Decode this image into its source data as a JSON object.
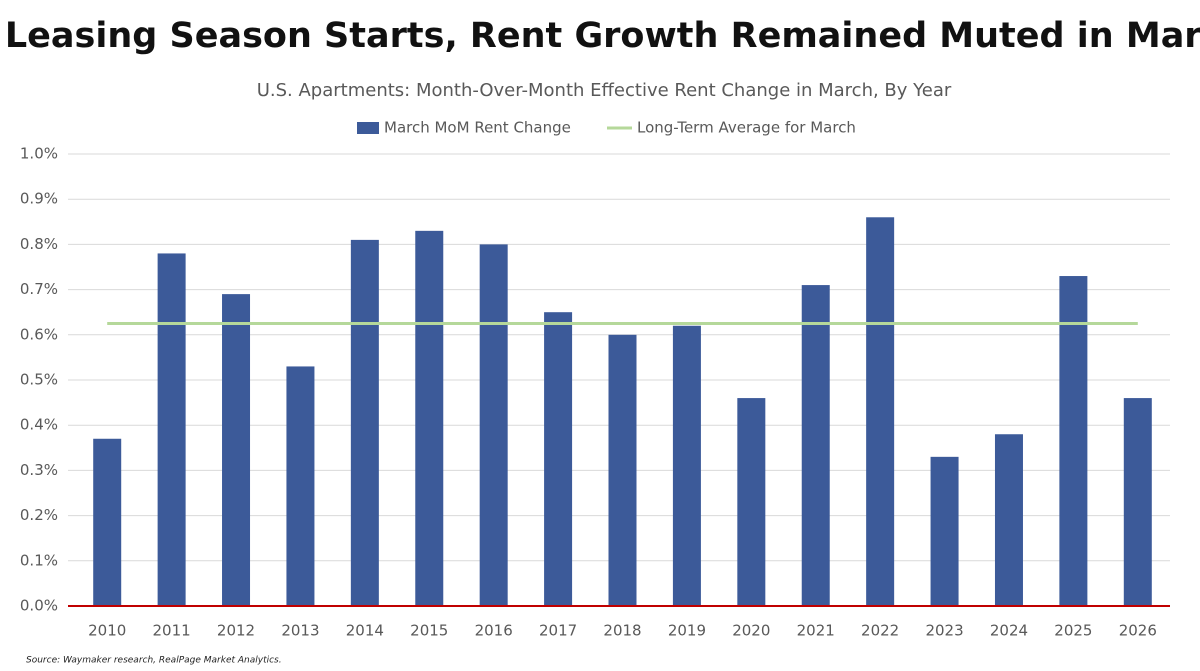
{
  "chart_data": {
    "type": "bar",
    "title": "As Leasing Season Starts, Rent Growth Remained Muted in March",
    "subtitle": "U.S. Apartments: Month-Over-Month Effective Rent Change in March, By Year",
    "source": "Source: Waymaker research, RealPage Market Analytics.",
    "categories": [
      "2010",
      "2011",
      "2012",
      "2013",
      "2014",
      "2015",
      "2016",
      "2017",
      "2018",
      "2019",
      "2020",
      "2021",
      "2022",
      "2023",
      "2024",
      "2025",
      "2026"
    ],
    "series": [
      {
        "name": "March MoM Rent Change",
        "type": "bar",
        "color": "#3c5a99",
        "values": [
          0.37,
          0.78,
          0.69,
          0.53,
          0.81,
          0.83,
          0.8,
          0.65,
          0.6,
          0.62,
          0.46,
          0.71,
          0.86,
          0.33,
          0.38,
          0.73,
          0.46
        ]
      },
      {
        "name": "Long-Term Average for March",
        "type": "line",
        "color": "#b5d89a",
        "values": [
          0.625,
          0.625,
          0.625,
          0.625,
          0.625,
          0.625,
          0.625,
          0.625,
          0.625,
          0.625,
          0.625,
          0.625,
          0.625,
          0.625,
          0.625,
          0.625,
          0.625
        ]
      }
    ],
    "ylim": [
      0,
      1.0
    ],
    "yticks": [
      {
        "value": 0,
        "label": "0.0%"
      },
      {
        "value": 0.1,
        "label": "0.1%"
      },
      {
        "value": 0.2,
        "label": "0.2%"
      },
      {
        "value": 0.3,
        "label": "0.3%"
      },
      {
        "value": 0.4,
        "label": "0.4%"
      },
      {
        "value": 0.5,
        "label": "0.5%"
      },
      {
        "value": 0.6,
        "label": "0.6%"
      },
      {
        "value": 0.7,
        "label": "0.7%"
      },
      {
        "value": 0.8,
        "label": "0.8%"
      },
      {
        "value": 0.9,
        "label": "0.9%"
      },
      {
        "value": 1.0,
        "label": "1.0%"
      }
    ],
    "grid": true,
    "legend": "top"
  }
}
